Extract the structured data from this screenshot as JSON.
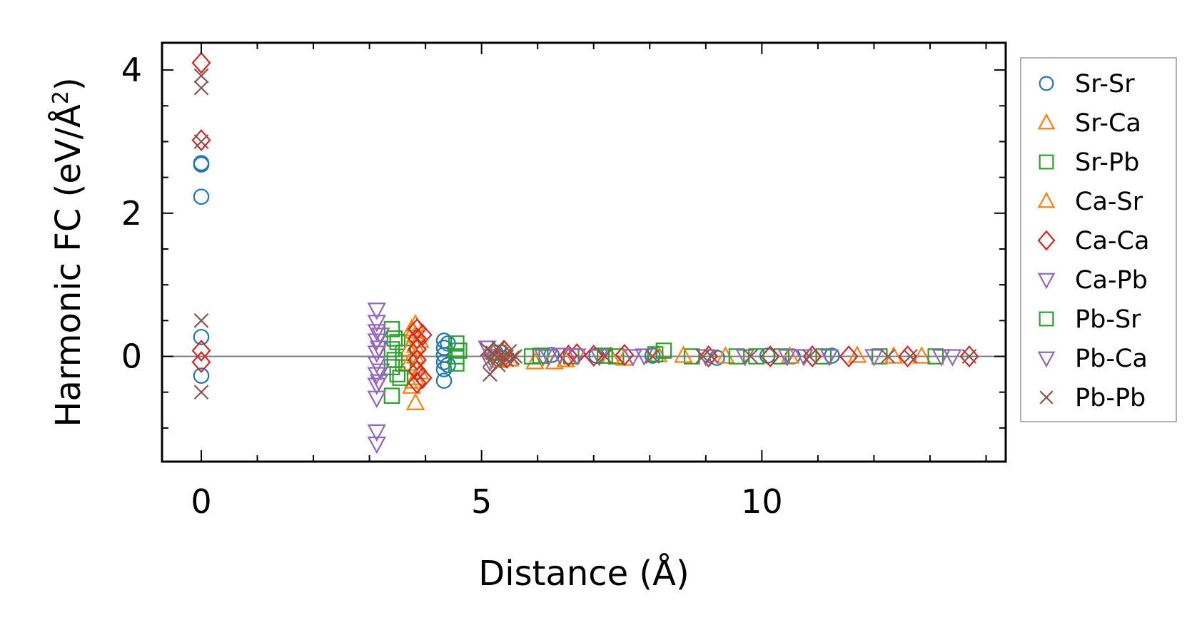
{
  "chart_data": {
    "type": "scatter",
    "xlabel": "Distance (Å)",
    "ylabel_main": "Harmonic FC (eV/Å",
    "ylabel_sup": "2",
    "ylabel_close": ")",
    "xlim": [
      -0.7,
      14.35
    ],
    "ylim": [
      -1.47,
      4.38
    ],
    "xticks": [
      0,
      5,
      10
    ],
    "xtick_labels": [
      "0",
      "5",
      "10"
    ],
    "xminor_step": 1,
    "yticks": [
      0,
      2,
      4
    ],
    "ytick_labels": [
      "0",
      "2",
      "4"
    ],
    "yminor_step": 0.5,
    "zero_line": 0,
    "legend_position": "outside-right",
    "series": [
      {
        "name": "Sr-Sr",
        "marker": "circle",
        "color": "#1f77b4",
        "points": [
          [
            0,
            2.7
          ],
          [
            0,
            2.68
          ],
          [
            0,
            2.23
          ],
          [
            0,
            0.27
          ],
          [
            0,
            -0.27
          ],
          [
            4.33,
            0.22
          ],
          [
            4.33,
            0.12
          ],
          [
            4.33,
            0.02
          ],
          [
            4.33,
            -0.08
          ],
          [
            4.33,
            -0.18
          ],
          [
            4.33,
            -0.34
          ],
          [
            4.4,
            0.18
          ],
          [
            4.4,
            -0.12
          ],
          [
            5.25,
            0.05
          ],
          [
            5.25,
            -0.05
          ],
          [
            6.25,
            0.02
          ],
          [
            7.05,
            0.01
          ],
          [
            8.05,
            0.01
          ],
          [
            9.2,
            -0.02
          ],
          [
            10.1,
            0.01
          ],
          [
            10.55,
            0.0
          ],
          [
            11.25,
            0.01
          ]
        ]
      },
      {
        "name": "Sr-Ca",
        "marker": "triangle-up",
        "color": "#ff7f0e",
        "points": [
          [
            3.82,
            0.45
          ],
          [
            3.82,
            0.3
          ],
          [
            3.82,
            0.15
          ],
          [
            3.82,
            0.0
          ],
          [
            3.82,
            -0.15
          ],
          [
            3.82,
            -0.3
          ],
          [
            3.82,
            -0.65
          ],
          [
            3.9,
            0.22
          ],
          [
            3.9,
            -0.22
          ],
          [
            3.75,
            0.38
          ],
          [
            3.75,
            -0.42
          ],
          [
            5.2,
            0.06
          ],
          [
            5.3,
            -0.06
          ],
          [
            5.95,
            -0.08
          ],
          [
            6.5,
            -0.05
          ],
          [
            7.3,
            0.0
          ],
          [
            8.15,
            0.02
          ],
          [
            9.35,
            0.0
          ],
          [
            10.5,
            0.0
          ],
          [
            11.7,
            0.01
          ],
          [
            12.85,
            0.0
          ]
        ]
      },
      {
        "name": "Sr-Pb",
        "marker": "square",
        "color": "#2ca02c",
        "points": [
          [
            3.4,
            0.38
          ],
          [
            3.4,
            0.1
          ],
          [
            3.4,
            -0.15
          ],
          [
            3.4,
            -0.55
          ],
          [
            3.5,
            0.2
          ],
          [
            3.5,
            -0.25
          ],
          [
            3.6,
            0.05
          ],
          [
            3.6,
            -0.1
          ],
          [
            4.55,
            0.18
          ],
          [
            4.55,
            0.0
          ],
          [
            4.55,
            -0.1
          ],
          [
            5.3,
            0.05
          ],
          [
            5.9,
            0.0
          ],
          [
            6.6,
            0.0
          ],
          [
            7.4,
            0.0
          ],
          [
            8.25,
            0.08
          ],
          [
            8.75,
            0.0
          ],
          [
            9.55,
            0.0
          ],
          [
            10.35,
            0.0
          ],
          [
            11.1,
            0.0
          ],
          [
            12.1,
            0.0
          ],
          [
            13.1,
            0.0
          ]
        ]
      },
      {
        "name": "Ca-Sr",
        "marker": "triangle-up",
        "color": "#ff7f0e",
        "points": [
          [
            3.7,
            0.1
          ],
          [
            3.7,
            -0.1
          ],
          [
            3.78,
            0.35
          ],
          [
            3.78,
            -0.35
          ],
          [
            5.5,
            -0.04
          ],
          [
            6.3,
            -0.08
          ],
          [
            7.55,
            -0.03
          ],
          [
            8.6,
            0.01
          ],
          [
            12.35,
            0.0
          ]
        ]
      },
      {
        "name": "Ca-Ca",
        "marker": "diamond",
        "color": "#d62728",
        "points": [
          [
            0,
            4.1
          ],
          [
            0,
            3.02
          ],
          [
            0,
            0.08
          ],
          [
            0,
            -0.08
          ],
          [
            3.85,
            0.38
          ],
          [
            3.85,
            0.25
          ],
          [
            3.85,
            0.1
          ],
          [
            3.85,
            -0.05
          ],
          [
            3.85,
            -0.2
          ],
          [
            3.85,
            -0.37
          ],
          [
            3.95,
            0.3
          ],
          [
            3.95,
            -0.3
          ],
          [
            5.4,
            0.08
          ],
          [
            5.45,
            -0.02
          ],
          [
            6.55,
            0.01
          ],
          [
            6.7,
            0.03
          ],
          [
            7.0,
            0.01
          ],
          [
            7.55,
            0.02
          ],
          [
            9.05,
            0.0
          ],
          [
            10.15,
            0.0
          ],
          [
            10.9,
            0.0
          ],
          [
            11.55,
            0.0
          ],
          [
            12.6,
            0.0
          ],
          [
            13.7,
            0.0
          ]
        ]
      },
      {
        "name": "Ca-Pb",
        "marker": "triangle-down",
        "color": "#9467bd",
        "points": [
          [
            3.13,
            0.65
          ],
          [
            3.13,
            0.48
          ],
          [
            3.13,
            0.35
          ],
          [
            3.13,
            0.22
          ],
          [
            3.13,
            0.05
          ],
          [
            3.13,
            -0.1
          ],
          [
            3.13,
            -0.25
          ],
          [
            3.13,
            -0.4
          ],
          [
            3.13,
            -0.58
          ],
          [
            3.13,
            -1.05
          ],
          [
            3.13,
            -1.22
          ],
          [
            3.2,
            0.3
          ],
          [
            3.2,
            -0.2
          ],
          [
            5.1,
            0.12
          ],
          [
            5.2,
            0.0
          ],
          [
            6.1,
            0.0
          ],
          [
            6.2,
            0.0
          ],
          [
            6.7,
            0.01
          ],
          [
            7.1,
            0.0
          ],
          [
            7.9,
            0.01
          ],
          [
            9.7,
            0.0
          ],
          [
            10.45,
            0.0
          ],
          [
            11.2,
            0.0
          ],
          [
            12.0,
            0.0
          ],
          [
            13.2,
            0.0
          ],
          [
            13.4,
            0.0
          ]
        ]
      },
      {
        "name": "Pb-Sr",
        "marker": "square",
        "color": "#2ca02c",
        "points": [
          [
            3.45,
            0.25
          ],
          [
            3.45,
            -0.05
          ],
          [
            3.55,
            -0.3
          ],
          [
            4.6,
            0.08
          ],
          [
            6.05,
            0.01
          ],
          [
            7.2,
            0.01
          ],
          [
            8.1,
            0.03
          ],
          [
            9.9,
            0.0
          ]
        ]
      },
      {
        "name": "Pb-Ca",
        "marker": "triangle-down",
        "color": "#9467bd",
        "points": [
          [
            3.17,
            0.12
          ],
          [
            3.17,
            -0.35
          ],
          [
            5.15,
            -0.08
          ],
          [
            6.4,
            0.02
          ],
          [
            7.7,
            0.0
          ],
          [
            9.0,
            0.0
          ],
          [
            10.75,
            0.0
          ]
        ]
      },
      {
        "name": "Pb-Pb",
        "marker": "x",
        "color": "#8c564b",
        "points": [
          [
            0,
            3.92
          ],
          [
            0,
            3.75
          ],
          [
            0,
            3.0
          ],
          [
            0,
            0.5
          ],
          [
            0,
            -0.5
          ],
          [
            5.1,
            0.1
          ],
          [
            5.15,
            -0.05
          ],
          [
            5.15,
            -0.25
          ],
          [
            5.2,
            0.05
          ],
          [
            5.3,
            0.12
          ],
          [
            5.3,
            -0.12
          ],
          [
            5.35,
            0.03
          ],
          [
            5.4,
            0.0
          ],
          [
            5.45,
            -0.05
          ],
          [
            5.5,
            0.07
          ],
          [
            5.55,
            -0.02
          ],
          [
            5.6,
            0.0
          ],
          [
            7.2,
            0.0
          ],
          [
            8.05,
            0.0
          ],
          [
            8.95,
            0.0
          ],
          [
            9.1,
            0.0
          ],
          [
            9.8,
            0.0
          ],
          [
            10.85,
            0.0
          ],
          [
            12.25,
            0.0
          ],
          [
            12.65,
            0.0
          ],
          [
            13.7,
            0.0
          ]
        ]
      }
    ]
  }
}
